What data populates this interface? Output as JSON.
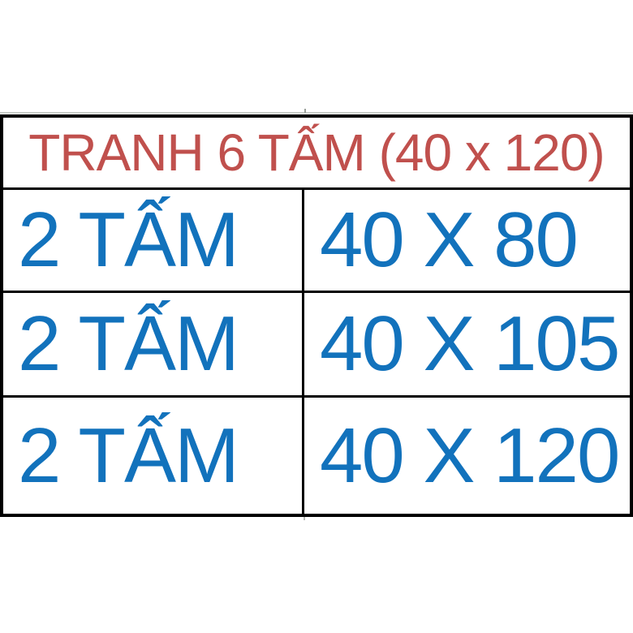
{
  "table": {
    "header": "TRANH 6 TẤM (40 x 120)",
    "rows": [
      {
        "quantity": "2 TẤM",
        "size": "40 X 80"
      },
      {
        "quantity": "2 TẤM",
        "size": "40 X 105"
      },
      {
        "quantity": "2 TẤM",
        "size": "40 X 120"
      }
    ]
  },
  "colors": {
    "header_text": "#c0504d",
    "cell_text": "#1272bc",
    "border": "#000000",
    "gridline": "#c9cdc9",
    "background": "#ffffff"
  }
}
